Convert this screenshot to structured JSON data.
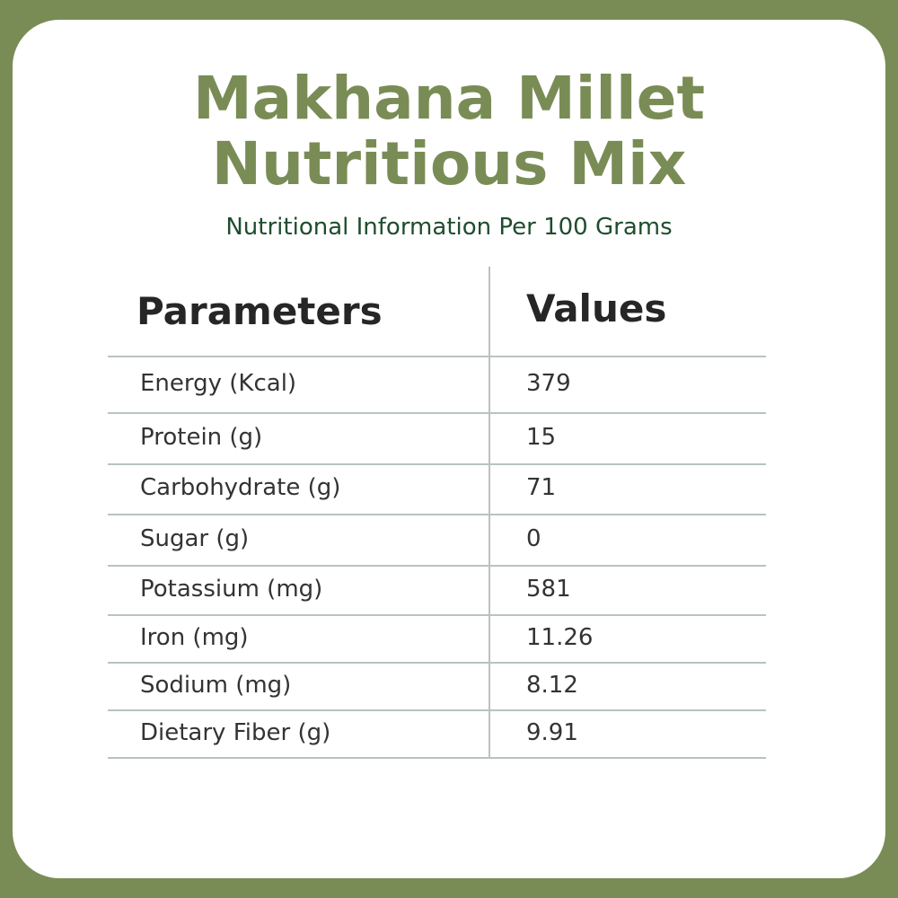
{
  "header": {
    "title_lines": [
      "Makhana Millet",
      "Nutritious Mix"
    ],
    "subtitle": "Nutritional Information Per 100 Grams"
  },
  "table": {
    "columns": [
      "Parameters",
      "Values"
    ],
    "rows": [
      [
        "Energy (Kcal)",
        "379"
      ],
      [
        "Protein (g)",
        "15"
      ],
      [
        "Carbohydrate (g)",
        "71"
      ],
      [
        "Sugar (g)",
        "0"
      ],
      [
        "Potassium (mg)",
        "581"
      ],
      [
        "Iron (mg)",
        "11.26"
      ],
      [
        "Sodium (mg)",
        "8.12"
      ],
      [
        "Dietary Fiber (g)",
        "9.91"
      ]
    ]
  }
}
